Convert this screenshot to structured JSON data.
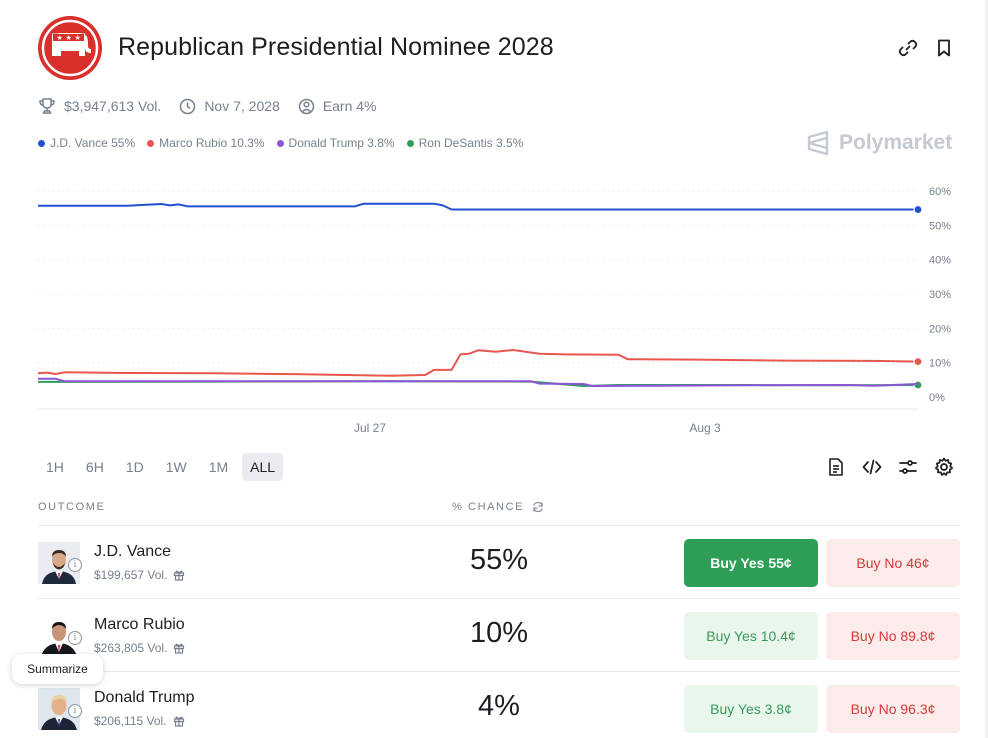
{
  "market": {
    "title": "Republican Presidential Nominee 2028",
    "volume": "$3,947,613 Vol.",
    "end_date": "Nov 7, 2028",
    "earn": "Earn 4%",
    "brand": "Polymarket"
  },
  "legend": [
    {
      "label": "J.D. Vance 55%",
      "color": "#2151d1"
    },
    {
      "label": "Marco Rubio 10.3%",
      "color": "#e8574e"
    },
    {
      "label": "Donald Trump 3.8%",
      "color": "#8b55d6"
    },
    {
      "label": "Ron DeSantis 3.5%",
      "color": "#2e9e57"
    }
  ],
  "chart_data": {
    "type": "line",
    "x_ticks": [
      "Jul 27",
      "Aug 3"
    ],
    "y_ticks": [
      "60%",
      "50%",
      "40%",
      "30%",
      "20%",
      "10%",
      "0%"
    ],
    "ylim": [
      0,
      60
    ],
    "grid": true,
    "series": [
      {
        "name": "J.D. Vance",
        "color": "#2151d1",
        "end_label": "55%",
        "points": [
          [
            0,
            55.7
          ],
          [
            5,
            55.7
          ],
          [
            10,
            55.7
          ],
          [
            14,
            56.2
          ],
          [
            15,
            55.8
          ],
          [
            16,
            56.1
          ],
          [
            17,
            55.5
          ],
          [
            20,
            55.5
          ],
          [
            36,
            55.5
          ],
          [
            37,
            56.3
          ],
          [
            45,
            56.3
          ],
          [
            46,
            55.8
          ],
          [
            47,
            54.6
          ],
          [
            60,
            54.6
          ],
          [
            80,
            54.6
          ],
          [
            100,
            54.6
          ]
        ]
      },
      {
        "name": "Marco Rubio",
        "color": "#e8574e",
        "end_label": "10.3%",
        "points": [
          [
            0,
            6.9
          ],
          [
            1,
            7.1
          ],
          [
            2,
            6.7
          ],
          [
            3,
            7.2
          ],
          [
            10,
            7.0
          ],
          [
            20,
            6.9
          ],
          [
            30,
            6.6
          ],
          [
            40,
            6.2
          ],
          [
            44,
            6.4
          ],
          [
            45,
            7.9
          ],
          [
            47,
            7.9
          ],
          [
            48,
            12.4
          ],
          [
            49,
            12.6
          ],
          [
            50,
            13.6
          ],
          [
            52,
            13.2
          ],
          [
            54,
            13.7
          ],
          [
            57,
            12.6
          ],
          [
            60,
            12.4
          ],
          [
            66,
            12.3
          ],
          [
            67,
            11.0
          ],
          [
            75,
            10.9
          ],
          [
            85,
            10.6
          ],
          [
            95,
            10.5
          ],
          [
            100,
            10.3
          ]
        ]
      },
      {
        "name": "Donald Trump",
        "color": "#8b55d6",
        "end_label": "3.8%",
        "points": [
          [
            0,
            5.3
          ],
          [
            2,
            5.3
          ],
          [
            3,
            4.6
          ],
          [
            50,
            4.6
          ],
          [
            56,
            4.6
          ],
          [
            57,
            3.9
          ],
          [
            62,
            3.8
          ],
          [
            63,
            3.2
          ],
          [
            70,
            3.3
          ],
          [
            80,
            3.4
          ],
          [
            92,
            3.5
          ],
          [
            95,
            3.3
          ],
          [
            100,
            3.8
          ]
        ]
      },
      {
        "name": "Ron DeSantis",
        "color": "#2e9e57",
        "end_label": "3.5%",
        "points": [
          [
            0,
            4.4
          ],
          [
            20,
            4.5
          ],
          [
            40,
            4.6
          ],
          [
            56,
            4.5
          ],
          [
            62,
            3.2
          ],
          [
            66,
            3.5
          ],
          [
            80,
            3.5
          ],
          [
            90,
            3.4
          ],
          [
            100,
            3.5
          ]
        ]
      }
    ]
  },
  "ranges": [
    "1H",
    "6H",
    "1D",
    "1W",
    "1M",
    "ALL"
  ],
  "table": {
    "col_outcome": "OUTCOME",
    "col_chance": "% CHANCE",
    "rows": [
      {
        "name": "J.D. Vance",
        "vol": "$199,657 Vol.",
        "chance": "55%",
        "yes": "Buy Yes 55¢",
        "no": "Buy No 46¢"
      },
      {
        "name": "Marco Rubio",
        "vol": "$263,805 Vol.",
        "chance": "10%",
        "yes": "Buy Yes 10.4¢",
        "no": "Buy No 89.8¢"
      },
      {
        "name": "Donald Trump",
        "vol": "$206,115 Vol.",
        "chance": "4%",
        "yes": "Buy Yes 3.8¢",
        "no": "Buy No 96.3¢"
      }
    ]
  },
  "summarize": "Summarize"
}
